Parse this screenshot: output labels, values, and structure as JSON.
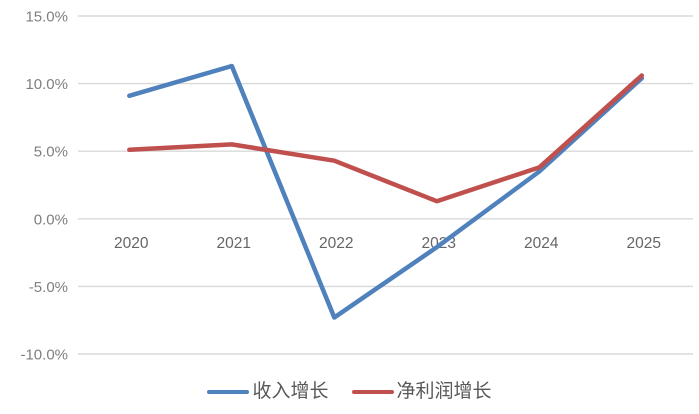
{
  "chart_data": {
    "type": "line",
    "title": "",
    "xlabel": "",
    "ylabel": "",
    "categories": [
      "2020",
      "2021",
      "2022",
      "2023",
      "2024",
      "2025"
    ],
    "series": [
      {
        "name": "收入增长",
        "color": "#4f81bd",
        "values": [
          9.1,
          11.3,
          -7.3,
          -2.1,
          3.5,
          10.4
        ]
      },
      {
        "name": "净利润增长",
        "color": "#c0504d",
        "values": [
          5.1,
          5.5,
          4.3,
          1.3,
          3.8,
          10.6
        ]
      }
    ],
    "y_ticks": [
      15,
      10,
      5,
      0,
      -5,
      -10
    ],
    "y_tick_labels": [
      "15.0%",
      "10.0%",
      "5.0%",
      "0.0%",
      "-5.0%",
      "-10.0%"
    ],
    "ylim": [
      -10,
      15
    ],
    "grid": true,
    "legend_position": "bottom"
  },
  "colors": {
    "background": "#ffffff",
    "gridline": "#d9d9d9",
    "y_tick_text": "#7f7f7f",
    "x_tick_text": "#666666",
    "legend_text": "#595959"
  }
}
